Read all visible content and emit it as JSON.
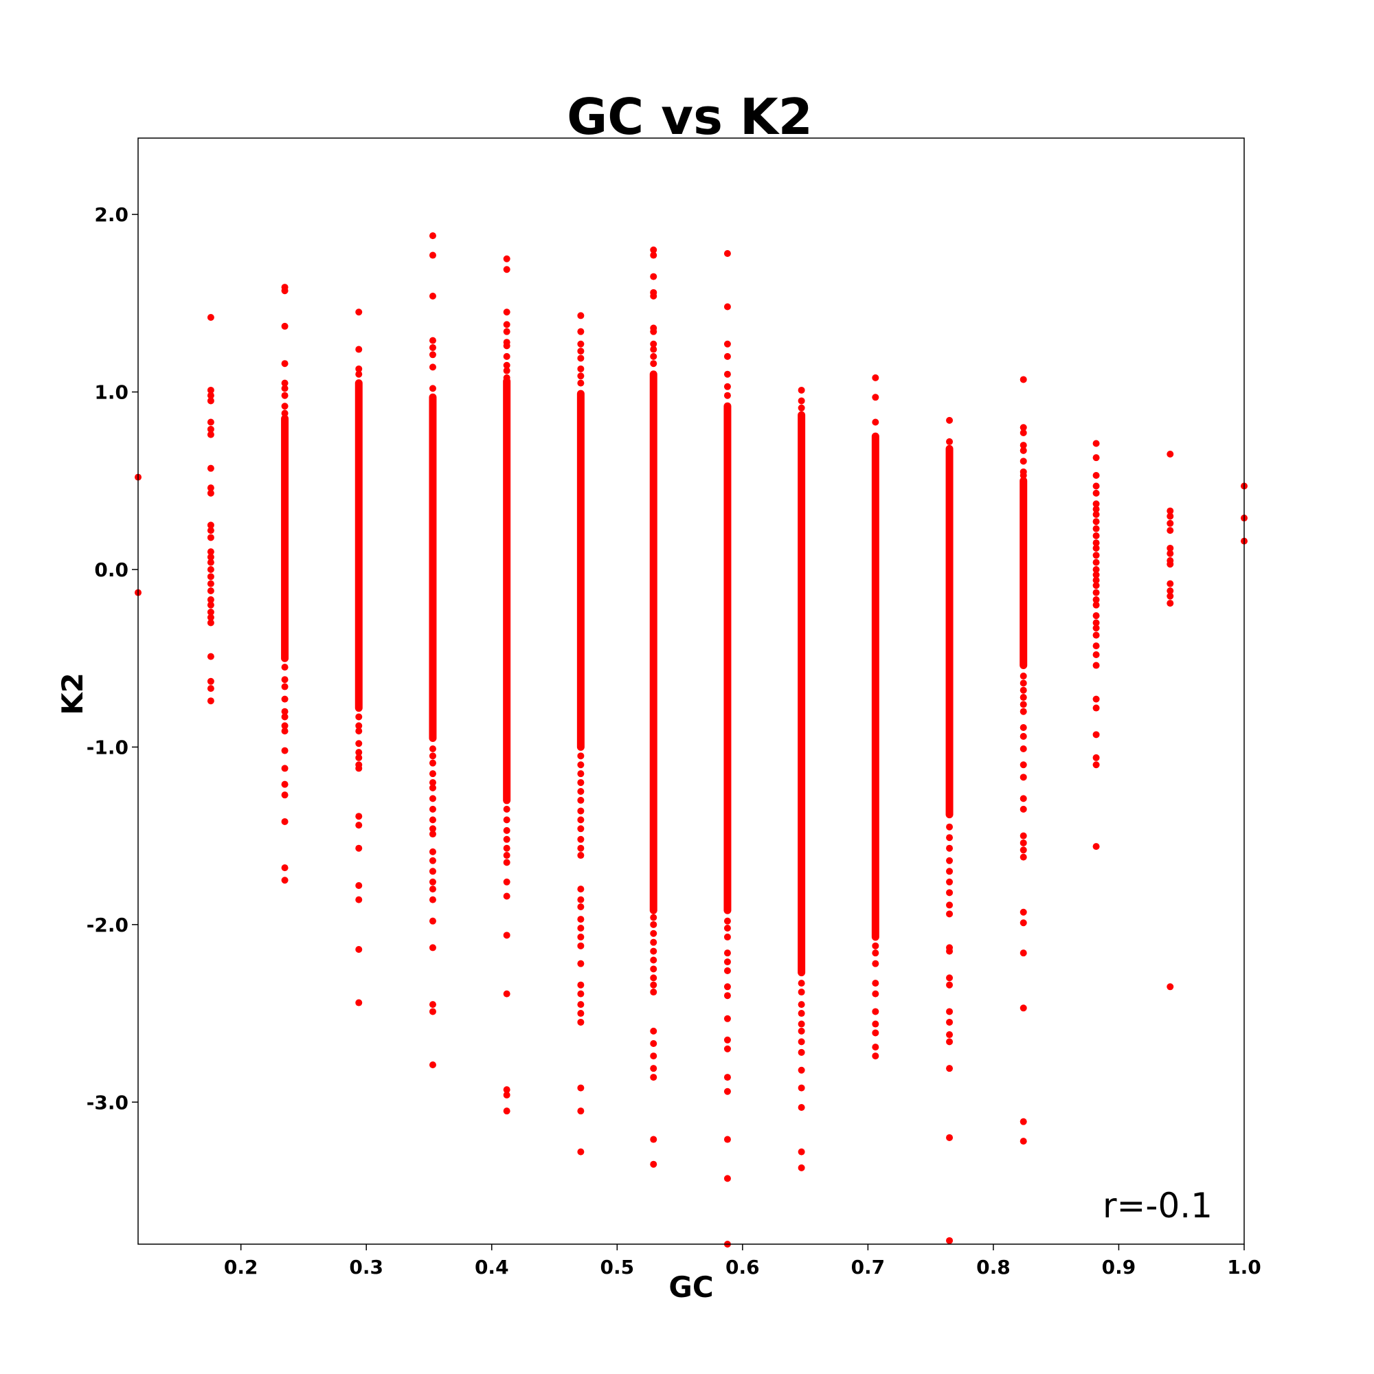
{
  "chart_data": {
    "type": "scatter",
    "title": "GC vs K2",
    "xlabel": "GC",
    "ylabel": "K2",
    "xlim": [
      0.118,
      1.0
    ],
    "ylim": [
      -3.8,
      2.43
    ],
    "xticks": [
      {
        "value": 0.2,
        "label": "0.2"
      },
      {
        "value": 0.3,
        "label": "0.3"
      },
      {
        "value": 0.4,
        "label": "0.4"
      },
      {
        "value": 0.5,
        "label": "0.5"
      },
      {
        "value": 0.6,
        "label": "0.6"
      },
      {
        "value": 0.7,
        "label": "0.7"
      },
      {
        "value": 0.8,
        "label": "0.8"
      },
      {
        "value": 0.9,
        "label": "0.9"
      },
      {
        "value": 1.0,
        "label": "1.0"
      }
    ],
    "yticks": [
      {
        "value": 2.0,
        "label": "2.0"
      },
      {
        "value": 1.0,
        "label": "1.0"
      },
      {
        "value": 0.0,
        "label": "0.0"
      },
      {
        "value": -1.0,
        "label": "-1.0"
      },
      {
        "value": -2.0,
        "label": "-2.0"
      },
      {
        "value": -3.0,
        "label": "-3.0"
      }
    ],
    "grid": false,
    "marker_color": "#ff0000",
    "annotation": "r=-0.1",
    "columns": [
      {
        "x": 0.118,
        "dense": [],
        "points": [
          0.52,
          -0.13
        ]
      },
      {
        "x": 0.176,
        "dense": [],
        "points": [
          1.42,
          1.01,
          0.98,
          0.95,
          0.83,
          0.79,
          0.76,
          0.57,
          0.46,
          0.43,
          0.25,
          0.22,
          0.18,
          0.1,
          0.07,
          0.04,
          0.0,
          -0.04,
          -0.08,
          -0.12,
          -0.17,
          -0.2,
          -0.24,
          -0.27,
          -0.3,
          -0.49,
          -0.63,
          -0.67,
          -0.74
        ]
      },
      {
        "x": 0.235,
        "dense": [
          -0.5,
          0.85
        ],
        "points": [
          1.59,
          1.57,
          1.37,
          1.16,
          1.05,
          1.02,
          0.98,
          0.92,
          0.88,
          -0.55,
          -0.62,
          -0.66,
          -0.73,
          -0.8,
          -0.83,
          -0.88,
          -0.91,
          -1.02,
          -1.12,
          -1.21,
          -1.27,
          -1.42,
          -1.68,
          -1.75
        ]
      },
      {
        "x": 0.294,
        "dense": [
          -0.78,
          1.05
        ],
        "points": [
          1.45,
          1.24,
          1.13,
          1.1,
          -0.83,
          -0.88,
          -0.91,
          -0.98,
          -1.03,
          -1.06,
          -1.1,
          -1.12,
          -1.39,
          -1.44,
          -1.57,
          -1.78,
          -1.86,
          -2.14,
          -2.44
        ]
      },
      {
        "x": 0.353,
        "dense": [
          -0.95,
          0.97
        ],
        "points": [
          1.88,
          1.77,
          1.54,
          1.29,
          1.25,
          1.21,
          1.14,
          1.02,
          -1.01,
          -1.05,
          -1.09,
          -1.15,
          -1.2,
          -1.23,
          -1.29,
          -1.35,
          -1.41,
          -1.46,
          -1.49,
          -1.59,
          -1.64,
          -1.7,
          -1.76,
          -1.8,
          -1.86,
          -1.98,
          -2.13,
          -2.45,
          -2.49,
          -2.79
        ]
      },
      {
        "x": 0.412,
        "dense": [
          -1.3,
          1.06
        ],
        "points": [
          1.75,
          1.69,
          1.45,
          1.38,
          1.34,
          1.28,
          1.26,
          1.2,
          1.15,
          1.12,
          1.08,
          -1.35,
          -1.41,
          -1.47,
          -1.52,
          -1.57,
          -1.61,
          -1.65,
          -1.76,
          -1.84,
          -2.06,
          -2.39,
          -2.93,
          -2.96,
          -3.05
        ]
      },
      {
        "x": 0.471,
        "dense": [
          -1.0,
          0.99
        ],
        "points": [
          1.43,
          1.34,
          1.27,
          1.23,
          1.19,
          1.13,
          1.09,
          1.05,
          -1.05,
          -1.1,
          -1.15,
          -1.2,
          -1.25,
          -1.3,
          -1.36,
          -1.41,
          -1.46,
          -1.52,
          -1.57,
          -1.61,
          -1.8,
          -1.86,
          -1.9,
          -1.97,
          -2.02,
          -2.07,
          -2.12,
          -2.22,
          -2.34,
          -2.39,
          -2.45,
          -2.5,
          -2.55,
          -2.92,
          -3.05,
          -3.28
        ]
      },
      {
        "x": 0.529,
        "dense": [
          -1.92,
          1.1
        ],
        "points": [
          1.8,
          1.77,
          1.65,
          1.56,
          1.54,
          1.36,
          1.34,
          1.27,
          1.24,
          1.2,
          1.16,
          -1.96,
          -2.0,
          -2.05,
          -2.1,
          -2.15,
          -2.2,
          -2.25,
          -2.3,
          -2.34,
          -2.38,
          -2.6,
          -2.67,
          -2.74,
          -2.81,
          -2.86,
          -3.21,
          -3.35
        ]
      },
      {
        "x": 0.588,
        "dense": [
          -1.92,
          0.92
        ],
        "points": [
          1.78,
          1.48,
          1.27,
          1.2,
          1.1,
          1.03,
          0.98,
          -1.98,
          -2.02,
          -2.07,
          -2.16,
          -2.21,
          -2.26,
          -2.35,
          -2.4,
          -2.53,
          -2.65,
          -2.7,
          -2.86,
          -2.94,
          -3.21,
          -3.43,
          -3.8
        ]
      },
      {
        "x": 0.647,
        "dense": [
          -2.27,
          0.87
        ],
        "points": [
          1.01,
          0.95,
          0.91,
          -2.33,
          -2.38,
          -2.45,
          -2.5,
          -2.56,
          -2.6,
          -2.66,
          -2.72,
          -2.82,
          -2.92,
          -3.03,
          -3.28,
          -3.37
        ]
      },
      {
        "x": 0.706,
        "dense": [
          -2.07,
          0.75
        ],
        "points": [
          1.08,
          0.97,
          0.83,
          -2.12,
          -2.16,
          -2.22,
          -2.33,
          -2.39,
          -2.49,
          -2.56,
          -2.61,
          -2.69,
          -2.74
        ]
      },
      {
        "x": 0.765,
        "dense": [
          -1.38,
          0.68
        ],
        "points": [
          0.84,
          0.72,
          -1.45,
          -1.51,
          -1.57,
          -1.64,
          -1.7,
          -1.76,
          -1.82,
          -1.89,
          -1.94,
          -2.13,
          -2.15,
          -2.3,
          -2.34,
          -2.49,
          -2.55,
          -2.62,
          -2.66,
          -2.81,
          -3.2,
          -3.78
        ]
      },
      {
        "x": 0.824,
        "dense": [
          -0.54,
          0.5
        ],
        "points": [
          1.07,
          0.8,
          0.77,
          0.7,
          0.67,
          0.61,
          0.55,
          0.53,
          -0.6,
          -0.64,
          -0.68,
          -0.72,
          -0.76,
          -0.8,
          -0.89,
          -0.94,
          -1.01,
          -1.1,
          -1.17,
          -1.29,
          -1.35,
          -1.5,
          -1.54,
          -1.58,
          -1.62,
          -1.93,
          -1.99,
          -2.16,
          -2.47,
          -3.11,
          -3.22
        ]
      },
      {
        "x": 0.882,
        "dense": [],
        "points": [
          0.71,
          0.63,
          0.53,
          0.47,
          0.43,
          0.37,
          0.34,
          0.31,
          0.27,
          0.23,
          0.19,
          0.15,
          0.12,
          0.08,
          0.04,
          0.0,
          -0.03,
          -0.06,
          -0.09,
          -0.13,
          -0.17,
          -0.2,
          -0.26,
          -0.3,
          -0.33,
          -0.37,
          -0.43,
          -0.48,
          -0.54,
          -0.73,
          -0.78,
          -0.93,
          -1.06,
          -1.1,
          -1.56
        ]
      },
      {
        "x": 0.941,
        "dense": [],
        "points": [
          0.65,
          0.33,
          0.3,
          0.26,
          0.22,
          0.12,
          0.09,
          0.05,
          0.03,
          -0.08,
          -0.12,
          -0.15,
          -0.19,
          -2.35
        ]
      },
      {
        "x": 1.0,
        "dense": [],
        "points": [
          0.47,
          0.29,
          0.16
        ]
      }
    ]
  }
}
